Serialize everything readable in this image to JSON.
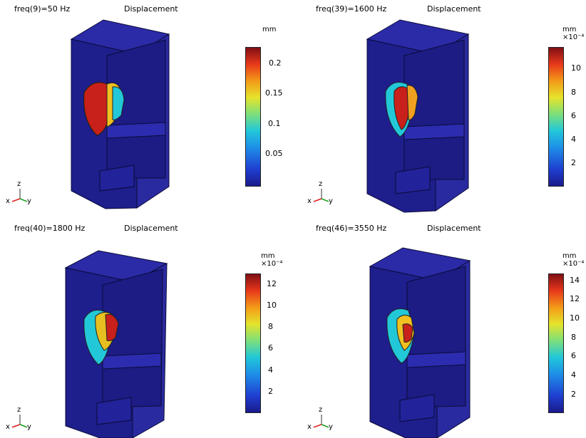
{
  "panels": [
    {
      "freq_label": "freq(9)=50 Hz",
      "title": "Displacement",
      "unit": "mm",
      "exponent": "",
      "ticks": [
        "0.2",
        "0.15",
        "0.1",
        "0.05"
      ]
    },
    {
      "freq_label": "freq(39)=1600 Hz",
      "title": "Displacement",
      "unit": "mm",
      "exponent": "×10⁻⁴",
      "ticks": [
        "10",
        "8",
        "6",
        "4",
        "2"
      ]
    },
    {
      "freq_label": "freq(40)=1800 Hz",
      "title": "Displacement",
      "unit": "mm",
      "exponent": "×10⁻⁴",
      "ticks": [
        "12",
        "10",
        "8",
        "6",
        "4",
        "2"
      ]
    },
    {
      "freq_label": "freq(46)=3550 Hz",
      "title": "Displacement",
      "unit": "mm",
      "exponent": "×10⁻⁴",
      "ticks": [
        "14",
        "12",
        "10",
        "8",
        "6",
        "4",
        "2"
      ]
    }
  ],
  "axes": {
    "z": "z",
    "x": "x",
    "y": "y"
  },
  "colors": {
    "body": "#24249a",
    "body_dark": "#141466",
    "hot": "#c8201a"
  }
}
